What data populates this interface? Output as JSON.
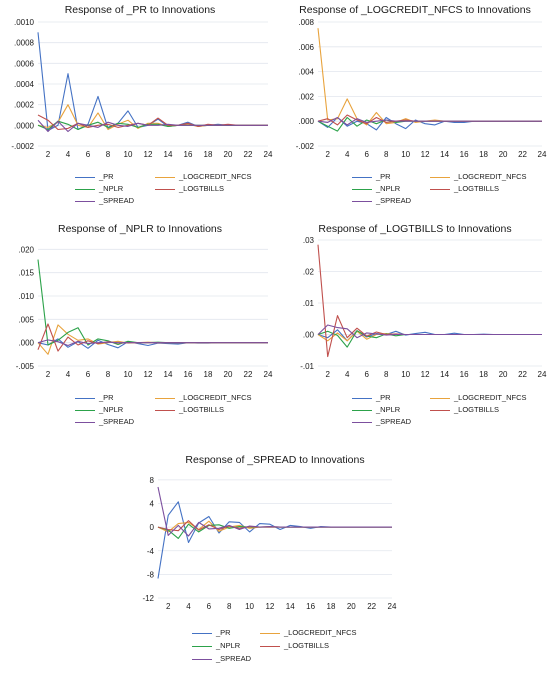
{
  "colors": {
    "PR": "#4472c4",
    "LOGCREDIT_NFCS": "#e8a33d",
    "NPLR": "#2ca24a",
    "LOGTBILLS": "#c0504d",
    "SPREAD": "#7c4f9e",
    "grid": "#e2e6ee"
  },
  "chart_data": [
    {
      "type": "line",
      "title": "Response of _PR to Innovations",
      "x": [
        1,
        2,
        3,
        4,
        5,
        6,
        7,
        8,
        9,
        10,
        11,
        12,
        13,
        14,
        15,
        16,
        17,
        18,
        19,
        20,
        21,
        22,
        23,
        24
      ],
      "xticks": [
        "2",
        "4",
        "6",
        "8",
        "10",
        "12",
        "14",
        "16",
        "18",
        "20",
        "22",
        "24"
      ],
      "yticks": [
        ".0010",
        ".0008",
        ".0006",
        ".0004",
        ".0002",
        ".0000",
        "-.0002"
      ],
      "ylim": [
        -0.0002,
        0.001
      ],
      "series": [
        {
          "name": "_PR",
          "color": "PR",
          "values": [
            0.0009,
            -5e-05,
            0.0,
            0.0005,
            -4e-05,
            1e-05,
            0.00028,
            -3e-05,
            2e-05,
            0.00014,
            -2e-05,
            0.0,
            6e-05,
            -1e-05,
            0.0,
            3e-05,
            -1e-05,
            0.0,
            1e-05,
            0.0,
            0.0,
            0.0,
            0.0,
            0.0
          ]
        },
        {
          "name": "_LOGCREDIT_NFCS",
          "color": "LOGCREDIT_NFCS",
          "values": [
            0.0,
            -2e-05,
            3e-05,
            0.0002,
            0.0,
            -2e-05,
            0.00012,
            -4e-05,
            1e-05,
            5e-05,
            -3e-05,
            2e-05,
            2e-05,
            -1e-05,
            0.0,
            1e-05,
            -1e-05,
            0.0,
            0.0,
            0.0,
            0.0,
            0.0,
            0.0,
            0.0
          ]
        },
        {
          "name": "_NPLR",
          "color": "NPLR",
          "values": [
            0.0,
            -4e-05,
            4e-05,
            1e-05,
            -4e-05,
            0.0,
            3e-05,
            -2e-05,
            2e-05,
            1e-05,
            -2e-05,
            1e-05,
            1e-05,
            -1e-05,
            0.0,
            0.0,
            0.0,
            0.0,
            0.0,
            0.0,
            0.0,
            0.0,
            0.0,
            0.0
          ]
        },
        {
          "name": "_LOGTBILLS",
          "color": "LOGTBILLS",
          "values": [
            0.0001,
            5e-05,
            -4e-05,
            -3e-05,
            2e-05,
            -2e-05,
            0.0,
            1e-05,
            -2e-05,
            0.0,
            2e-05,
            0.0,
            7e-05,
            0.0,
            0.0,
            2e-05,
            -1e-05,
            1e-05,
            0.0,
            1e-05,
            0.0,
            0.0,
            0.0,
            0.0
          ]
        },
        {
          "name": "_SPREAD",
          "color": "SPREAD",
          "values": [
            5e-05,
            -6e-05,
            4e-05,
            -6e-05,
            2e-05,
            0.0,
            -2e-05,
            3e-05,
            0.0,
            -1e-05,
            2e-05,
            0.0,
            0.0,
            1e-05,
            0.0,
            0.0,
            0.0,
            0.0,
            0.0,
            0.0,
            0.0,
            0.0,
            0.0,
            0.0
          ]
        }
      ]
    },
    {
      "type": "line",
      "title": "Response of _LOGCREDIT_NFCS to Innovations",
      "x": [
        1,
        2,
        3,
        4,
        5,
        6,
        7,
        8,
        9,
        10,
        11,
        12,
        13,
        14,
        15,
        16,
        17,
        18,
        19,
        20,
        21,
        22,
        23,
        24
      ],
      "xticks": [
        "2",
        "4",
        "6",
        "8",
        "10",
        "12",
        "14",
        "16",
        "18",
        "20",
        "22",
        "24"
      ],
      "yticks": [
        ".008",
        ".006",
        ".004",
        ".002",
        ".000",
        "-.002"
      ],
      "ylim": [
        -0.002,
        0.008
      ],
      "series": [
        {
          "name": "_PR",
          "color": "PR",
          "values": [
            0.0,
            -0.0005,
            0.0003,
            -0.0004,
            0.0,
            -0.0002,
            -0.0007,
            0.0003,
            -0.0002,
            -0.0006,
            0.0001,
            -0.0002,
            -0.0003,
            0.0,
            -0.0001,
            -0.0001,
            0.0,
            0.0,
            0.0,
            0.0,
            0.0,
            0.0,
            0.0,
            0.0
          ]
        },
        {
          "name": "_LOGCREDIT_NFCS",
          "color": "LOGCREDIT_NFCS",
          "values": [
            0.0075,
            0.0001,
            0.0002,
            0.0018,
            0.0002,
            -0.0003,
            0.0007,
            -0.0002,
            -0.0001,
            0.0002,
            -0.0001,
            0.0,
            0.0001,
            0.0,
            0.0,
            0.0,
            0.0,
            0.0,
            0.0,
            0.0,
            0.0,
            0.0,
            0.0,
            0.0
          ]
        },
        {
          "name": "_NPLR",
          "color": "NPLR",
          "values": [
            0.0,
            -0.0004,
            -0.0008,
            0.0003,
            -0.0004,
            0.0001,
            -0.0002,
            0.0001,
            -0.0001,
            0.0,
            0.0,
            0.0,
            0.0,
            0.0,
            0.0,
            0.0,
            0.0,
            0.0,
            0.0,
            0.0,
            0.0,
            0.0,
            0.0,
            0.0
          ]
        },
        {
          "name": "_LOGTBILLS",
          "color": "LOGTBILLS",
          "values": [
            0.0,
            0.0002,
            -0.0003,
            0.0005,
            0.0001,
            -0.0002,
            0.0003,
            -0.0001,
            0.0,
            0.0001,
            0.0,
            0.0,
            0.0,
            0.0,
            0.0,
            0.0,
            0.0,
            0.0,
            0.0,
            0.0,
            0.0,
            0.0,
            0.0,
            0.0
          ]
        },
        {
          "name": "_SPREAD",
          "color": "SPREAD",
          "values": [
            0.0,
            -0.0001,
            0.0003,
            -0.0003,
            0.0002,
            -0.0001,
            0.0,
            0.0001,
            0.0,
            0.0,
            0.0,
            0.0,
            0.0,
            0.0,
            0.0,
            0.0,
            0.0,
            0.0,
            0.0,
            0.0,
            0.0,
            0.0,
            0.0,
            0.0
          ]
        }
      ]
    },
    {
      "type": "line",
      "title": "Response of _NPLR to Innovations",
      "x": [
        1,
        2,
        3,
        4,
        5,
        6,
        7,
        8,
        9,
        10,
        11,
        12,
        13,
        14,
        15,
        16,
        17,
        18,
        19,
        20,
        21,
        22,
        23,
        24
      ],
      "xticks": [
        "2",
        "4",
        "6",
        "8",
        "10",
        "12",
        "14",
        "16",
        "18",
        "20",
        "22",
        "24"
      ],
      "yticks": [
        ".020",
        ".015",
        ".010",
        ".005",
        ".000",
        "-.005"
      ],
      "ylim": [
        -0.005,
        0.022
      ],
      "series": [
        {
          "name": "_PR",
          "color": "PR",
          "values": [
            0.0,
            -0.0005,
            0.0008,
            -0.001,
            0.0002,
            -0.0012,
            0.0005,
            -0.0004,
            -0.0011,
            0.0002,
            -0.0002,
            -0.0006,
            -0.0001,
            -0.0002,
            -0.0003,
            0.0,
            -0.0001,
            -0.0001,
            0.0,
            0.0,
            0.0,
            0.0,
            0.0,
            0.0
          ]
        },
        {
          "name": "_LOGCREDIT_NFCS",
          "color": "LOGCREDIT_NFCS",
          "values": [
            0.0,
            -0.0025,
            0.0038,
            0.0018,
            0.0005,
            0.0008,
            -0.0003,
            0.0,
            0.0003,
            -0.0001,
            0.0,
            0.0001,
            0.0,
            0.0,
            0.0,
            0.0,
            0.0,
            0.0,
            0.0,
            0.0,
            0.0,
            0.0,
            0.0,
            0.0
          ]
        },
        {
          "name": "_NPLR",
          "color": "NPLR",
          "values": [
            0.0178,
            -0.0005,
            0.0005,
            0.0022,
            0.0032,
            -0.0005,
            0.0008,
            0.0004,
            -0.0004,
            0.0003,
            0.0,
            0.0,
            0.0001,
            0.0,
            0.0,
            0.0,
            0.0,
            0.0,
            0.0,
            0.0,
            0.0,
            0.0,
            0.0,
            0.0
          ]
        },
        {
          "name": "_LOGTBILLS",
          "color": "LOGTBILLS",
          "values": [
            -0.0015,
            0.004,
            -0.0018,
            0.0012,
            -0.0005,
            0.0004,
            -0.0002,
            0.0002,
            -0.0001,
            0.0,
            0.0,
            0.0,
            0.0,
            0.0,
            0.0,
            0.0,
            0.0,
            0.0,
            0.0,
            0.0,
            0.0,
            0.0,
            0.0,
            0.0
          ]
        },
        {
          "name": "_SPREAD",
          "color": "SPREAD",
          "values": [
            0.0,
            0.0006,
            0.0002,
            -0.0006,
            0.0003,
            -0.0002,
            0.0,
            0.0001,
            0.0,
            0.0,
            0.0,
            0.0,
            0.0,
            0.0,
            0.0,
            0.0,
            0.0,
            0.0,
            0.0,
            0.0,
            0.0,
            0.0,
            0.0,
            0.0
          ]
        }
      ]
    },
    {
      "type": "line",
      "title": "Response of _LOGTBILLS to Innovations",
      "x": [
        1,
        2,
        3,
        4,
        5,
        6,
        7,
        8,
        9,
        10,
        11,
        12,
        13,
        14,
        15,
        16,
        17,
        18,
        19,
        20,
        21,
        22,
        23,
        24
      ],
      "xticks": [
        "2",
        "4",
        "6",
        "8",
        "10",
        "12",
        "14",
        "16",
        "18",
        "20",
        "22",
        "24"
      ],
      "yticks": [
        ".03",
        ".02",
        ".01",
        ".00",
        "-.01"
      ],
      "ylim": [
        -0.01,
        0.03
      ],
      "series": [
        {
          "name": "_PR",
          "color": "PR",
          "values": [
            0.0,
            -0.001,
            0.0015,
            -0.002,
            0.0012,
            -0.0008,
            0.0003,
            0.0,
            0.001,
            -0.0002,
            0.0003,
            0.0007,
            0.0,
            0.0,
            0.0004,
            0.0,
            0.0,
            0.0001,
            0.0,
            0.0,
            0.0,
            0.0,
            0.0,
            0.0
          ]
        },
        {
          "name": "_LOGCREDIT_NFCS",
          "color": "LOGCREDIT_NFCS",
          "values": [
            0.0,
            -0.002,
            0.0005,
            -0.002,
            0.001,
            -0.0015,
            0.0,
            0.0003,
            0.0,
            0.0,
            0.0,
            0.0,
            0.0,
            0.0,
            0.0,
            0.0,
            0.0,
            0.0,
            0.0,
            0.0,
            0.0,
            0.0,
            0.0,
            0.0
          ]
        },
        {
          "name": "_NPLR",
          "color": "NPLR",
          "values": [
            0.0,
            0.001,
            -0.0003,
            -0.004,
            0.0012,
            -0.0005,
            -0.001,
            0.0002,
            -0.0004,
            0.0,
            0.0,
            0.0,
            0.0,
            0.0,
            0.0,
            0.0,
            0.0,
            0.0,
            0.0,
            0.0,
            0.0,
            0.0,
            0.0,
            0.0
          ]
        },
        {
          "name": "_LOGTBILLS",
          "color": "LOGTBILLS",
          "values": [
            0.0285,
            -0.007,
            0.006,
            -0.001,
            0.002,
            -0.0005,
            0.0008,
            0.0,
            0.0002,
            0.0,
            0.0,
            0.0,
            0.0,
            0.0,
            0.0,
            0.0,
            0.0,
            0.0,
            0.0,
            0.0,
            0.0,
            0.0,
            0.0,
            0.0
          ]
        },
        {
          "name": "_SPREAD",
          "color": "SPREAD",
          "values": [
            0.0,
            0.003,
            0.0022,
            0.0018,
            -0.001,
            0.0005,
            0.0002,
            -0.0002,
            0.0,
            0.0,
            0.0,
            0.0,
            0.0,
            0.0,
            0.0,
            0.0,
            0.0,
            0.0,
            0.0,
            0.0,
            0.0,
            0.0,
            0.0,
            0.0
          ]
        }
      ]
    },
    {
      "type": "line",
      "title": "Response of _SPREAD to Innovations",
      "x": [
        1,
        2,
        3,
        4,
        5,
        6,
        7,
        8,
        9,
        10,
        11,
        12,
        13,
        14,
        15,
        16,
        17,
        18,
        19,
        20,
        21,
        22,
        23,
        24
      ],
      "xticks": [
        "2",
        "4",
        "6",
        "8",
        "10",
        "12",
        "14",
        "16",
        "18",
        "20",
        "22",
        "24"
      ],
      "yticks": [
        "8",
        "4",
        "0",
        "-4",
        "-8",
        "-12"
      ],
      "ylim": [
        -12,
        9
      ],
      "series": [
        {
          "name": "_PR",
          "color": "PR",
          "values": [
            -8.7,
            2.0,
            4.3,
            -2.6,
            0.7,
            1.8,
            -1.0,
            0.9,
            0.8,
            -0.8,
            0.6,
            0.5,
            -0.4,
            0.3,
            0.1,
            -0.2,
            0.1,
            0.0,
            0.0,
            0.0,
            0.0,
            0.0,
            0.0,
            0.0
          ]
        },
        {
          "name": "_LOGCREDIT_NFCS",
          "color": "LOGCREDIT_NFCS",
          "values": [
            0.0,
            -0.8,
            0.6,
            0.8,
            -0.4,
            1.0,
            -0.7,
            0.0,
            0.3,
            -0.2,
            0.0,
            0.1,
            0.0,
            0.0,
            0.0,
            0.0,
            0.0,
            0.0,
            0.0,
            0.0,
            0.0,
            0.0,
            0.0,
            0.0
          ]
        },
        {
          "name": "_NPLR",
          "color": "NPLR",
          "values": [
            0.0,
            -0.5,
            -1.9,
            0.5,
            -0.8,
            0.3,
            0.4,
            -0.2,
            0.1,
            0.0,
            0.0,
            0.0,
            0.0,
            0.0,
            0.0,
            0.0,
            0.0,
            0.0,
            0.0,
            0.0,
            0.0,
            0.0,
            0.0,
            0.0
          ]
        },
        {
          "name": "_LOGTBILLS",
          "color": "LOGTBILLS",
          "values": [
            0.0,
            -0.4,
            -0.6,
            1.1,
            -0.5,
            0.4,
            -0.4,
            0.2,
            -0.2,
            0.1,
            0.0,
            0.0,
            0.0,
            0.0,
            0.0,
            0.0,
            0.0,
            0.0,
            0.0,
            0.0,
            0.0,
            0.0,
            0.0,
            0.0
          ]
        },
        {
          "name": "_SPREAD",
          "color": "SPREAD",
          "values": [
            6.8,
            -1.4,
            0.3,
            -1.5,
            0.8,
            -0.3,
            -0.2,
            0.3,
            -0.4,
            0.2,
            0.0,
            0.1,
            0.0,
            0.0,
            0.0,
            0.0,
            0.0,
            0.0,
            0.0,
            0.0,
            0.0,
            0.0,
            0.0,
            0.0
          ]
        }
      ]
    }
  ]
}
